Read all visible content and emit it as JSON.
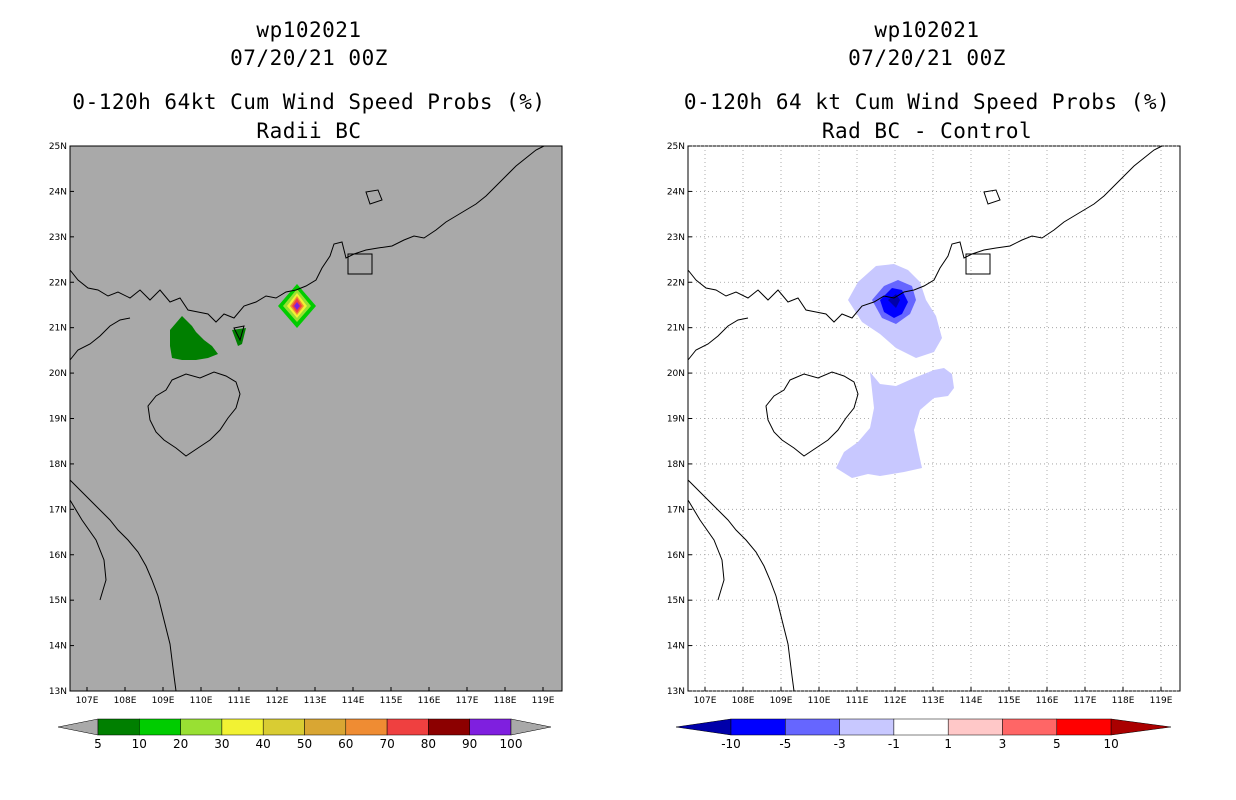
{
  "left": {
    "title1": "wp102021",
    "title2": "07/20/21 00Z",
    "title3": "0-120h 64kt Cum Wind Speed Probs (%)",
    "title4": "Radii BC",
    "colorbar": {
      "labels": [
        "5",
        "10",
        "20",
        "30",
        "40",
        "50",
        "60",
        "70",
        "80",
        "90",
        "100"
      ],
      "colors": [
        "#007f00",
        "#00cc00",
        "#99e033",
        "#f2f233",
        "#d9cc33",
        "#d9a633",
        "#ef8c33",
        "#ef4040",
        "#8c0000",
        "#7f1fdf"
      ]
    },
    "background": "#a9a9a9"
  },
  "right": {
    "title1": "wp102021",
    "title2": "07/20/21 00Z",
    "title3": "0-120h 64 kt Cum Wind Speed Probs (%)",
    "title4": "Rad BC - Control",
    "colorbar": {
      "labels": [
        "-10",
        "-5",
        "-3",
        "-1",
        "1",
        "3",
        "5",
        "10"
      ],
      "colors": [
        "#0000aa",
        "#0000ff",
        "#6666ff",
        "#c8c8ff",
        "#ffffff",
        "#ffc8c8",
        "#ff6666",
        "#ff0000",
        "#aa0000"
      ]
    },
    "background": "#ffffff"
  },
  "axes": {
    "lat_labels": [
      "25N",
      "24N",
      "23N",
      "22N",
      "21N",
      "20N",
      "19N",
      "18N",
      "17N",
      "16N",
      "15N",
      "14N",
      "13N"
    ],
    "lon_labels": [
      "107E",
      "108E",
      "109E",
      "110E",
      "111E",
      "112E",
      "113E",
      "114E",
      "115E",
      "116E",
      "117E",
      "118E",
      "119E"
    ]
  }
}
